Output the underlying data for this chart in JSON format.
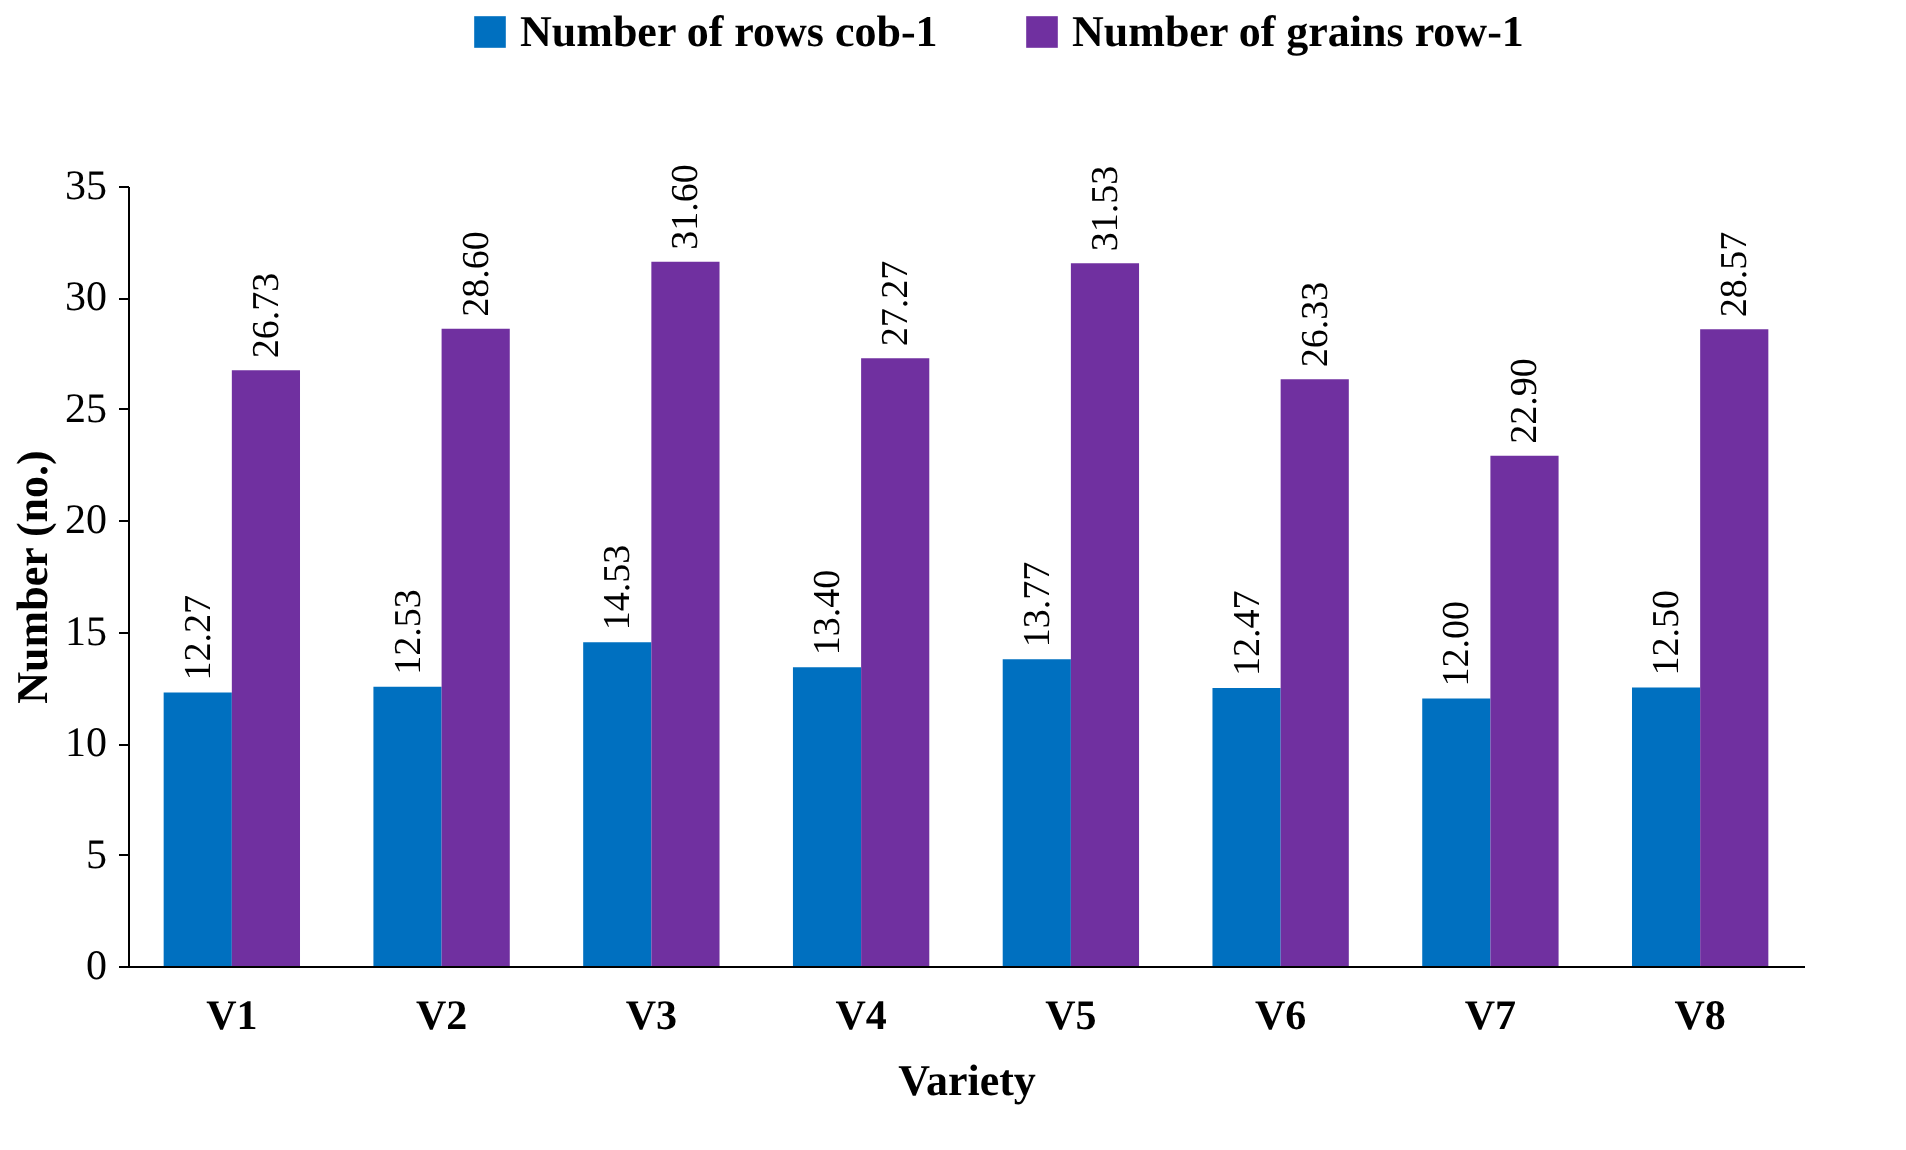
{
  "chart_data": {
    "type": "bar",
    "xlabel": "Variety",
    "ylabel": "Number (no.)",
    "categories": [
      "V1",
      "V2",
      "V3",
      "V4",
      "V5",
      "V6",
      "V7",
      "V8"
    ],
    "series": [
      {
        "name": "Number of rows cob-1",
        "color": "#0070c0",
        "values": [
          12.27,
          12.53,
          14.53,
          13.4,
          13.77,
          12.47,
          12.0,
          12.5
        ],
        "value_labels": [
          "12.27",
          "12.53",
          "14.53",
          "13.40",
          "13.77",
          "12.47",
          "12.00",
          "12.50"
        ]
      },
      {
        "name": "Number of grains row-1",
        "color": "#7030a0",
        "values": [
          26.73,
          28.6,
          31.6,
          27.27,
          31.53,
          26.33,
          22.9,
          28.57
        ],
        "value_labels": [
          "26.73",
          "28.60",
          "31.60",
          "27.27",
          "31.53",
          "26.33",
          "22.90",
          "28.57"
        ]
      }
    ],
    "ylim": [
      0,
      35
    ],
    "yticks": [
      0,
      5,
      10,
      15,
      20,
      25,
      30,
      35
    ],
    "grid": false,
    "legend": "top"
  }
}
